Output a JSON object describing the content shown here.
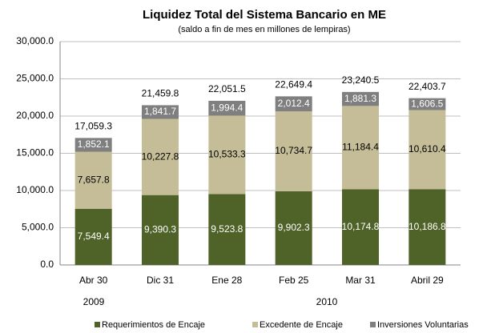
{
  "chart_data": {
    "type": "stacked_bar",
    "title": "Liquidez Total del Sistema Bancario en ME",
    "subtitle": "(saldo a fin de mes en millones de lempiras)",
    "categories": [
      "Abr 30",
      "Dic 31",
      "Ene 28",
      "Feb 25",
      "Mar 31",
      "Abril 29"
    ],
    "year_labels": [
      "2009",
      "2010"
    ],
    "series": [
      {
        "name": "Requerimientos de Encaje",
        "color": "#4f6228",
        "label_color": "#ffffff",
        "values": [
          7549.4,
          9390.3,
          9523.8,
          9902.3,
          10174.8,
          10186.8
        ],
        "value_labels": [
          "7,549.4",
          "9,390.3",
          "9,523.8",
          "9,902.3",
          "10,174.8",
          "10,186.8"
        ]
      },
      {
        "name": "Excedente de Encaje",
        "color": "#c4bd97",
        "label_color": "#000000",
        "values": [
          7657.8,
          10227.8,
          10533.3,
          10734.7,
          11184.4,
          10610.4
        ],
        "value_labels": [
          "7,657.8",
          "10,227.8",
          "10,533.3",
          "10,734.7",
          "11,184.4",
          "10,610.4"
        ]
      },
      {
        "name": "Inversiones Voluntarias",
        "color": "#7f7f7f",
        "label_color": "#ffffff",
        "values": [
          1852.1,
          1841.7,
          1994.4,
          2012.4,
          1881.3,
          1606.5
        ],
        "value_labels": [
          "1,852.1",
          "1,841.7",
          "1,994.4",
          "2,012.4",
          "1,881.3",
          "1,606.5"
        ]
      }
    ],
    "totals": [
      17059.3,
      21459.8,
      22051.5,
      22649.4,
      23240.5,
      22403.7
    ],
    "total_labels": [
      "17,059.3",
      "21,459.8",
      "22,051.5",
      "22,649.4",
      "23,240.5",
      "22,403.7"
    ],
    "ylim": [
      0,
      30000
    ],
    "yticks": [
      {
        "value": 0,
        "label": "0.0"
      },
      {
        "value": 5000,
        "label": "5,000.0"
      },
      {
        "value": 10000,
        "label": "10,000.0"
      },
      {
        "value": 15000,
        "label": "15,000.0"
      },
      {
        "value": 20000,
        "label": "20,000.0"
      },
      {
        "value": 25000,
        "label": "25,000.0"
      },
      {
        "value": 30000,
        "label": "30,000.0"
      }
    ],
    "grid": true
  }
}
